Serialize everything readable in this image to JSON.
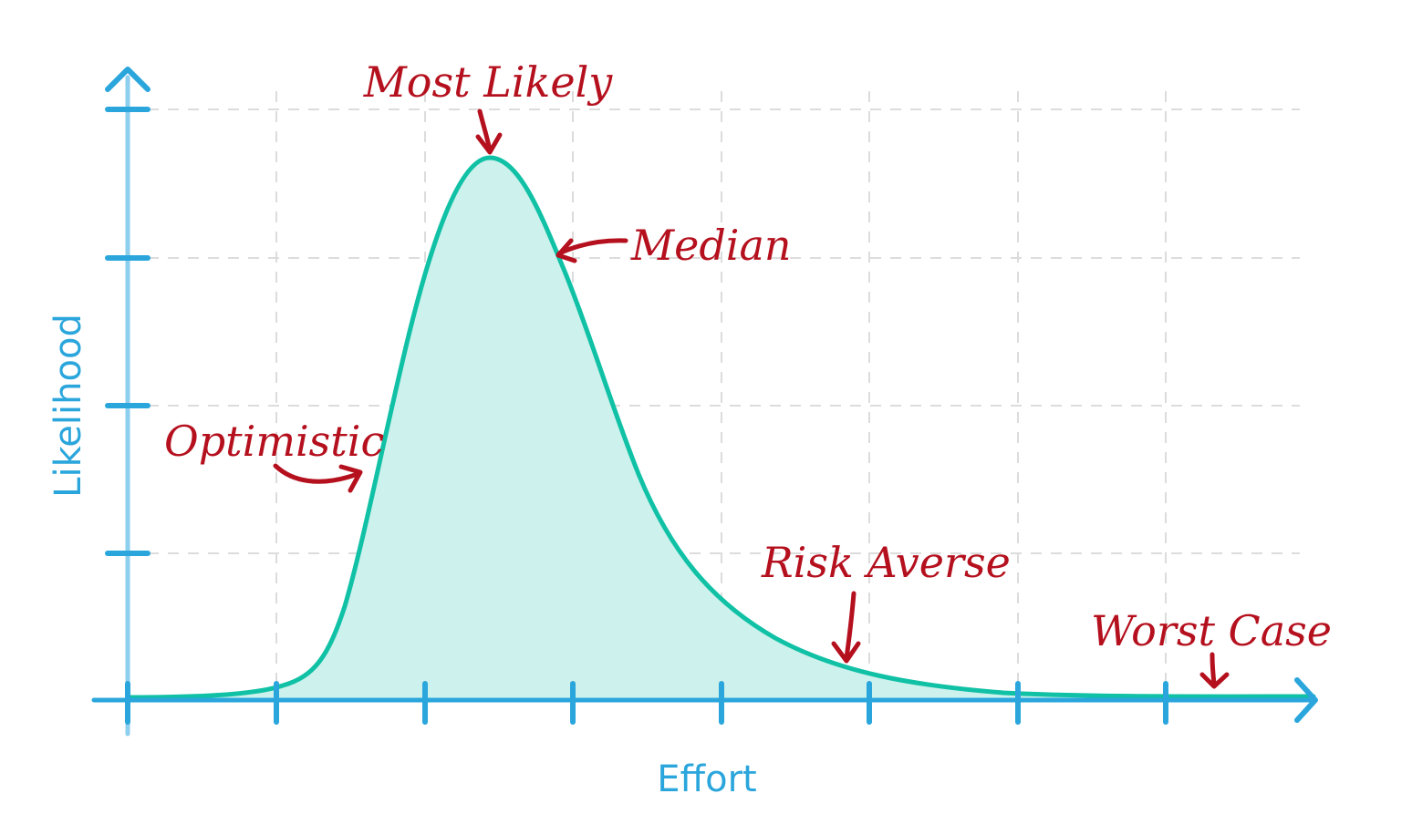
{
  "diagram": {
    "x_axis_label": "Effort",
    "y_axis_label": "Likelihood",
    "annotations": {
      "most_likely": "Most Likely",
      "median": "Median",
      "optimistic": "Optimistic",
      "risk_averse": "Risk Averse",
      "worst_case": "Worst Case"
    },
    "colors": {
      "axis": "#2aa6dc",
      "axis_light": "#8ccfee",
      "curve": "#10c1a6",
      "fill": "#cdf1ec",
      "grid": "#dcdcdc",
      "annotation": "#b5101e"
    }
  }
}
